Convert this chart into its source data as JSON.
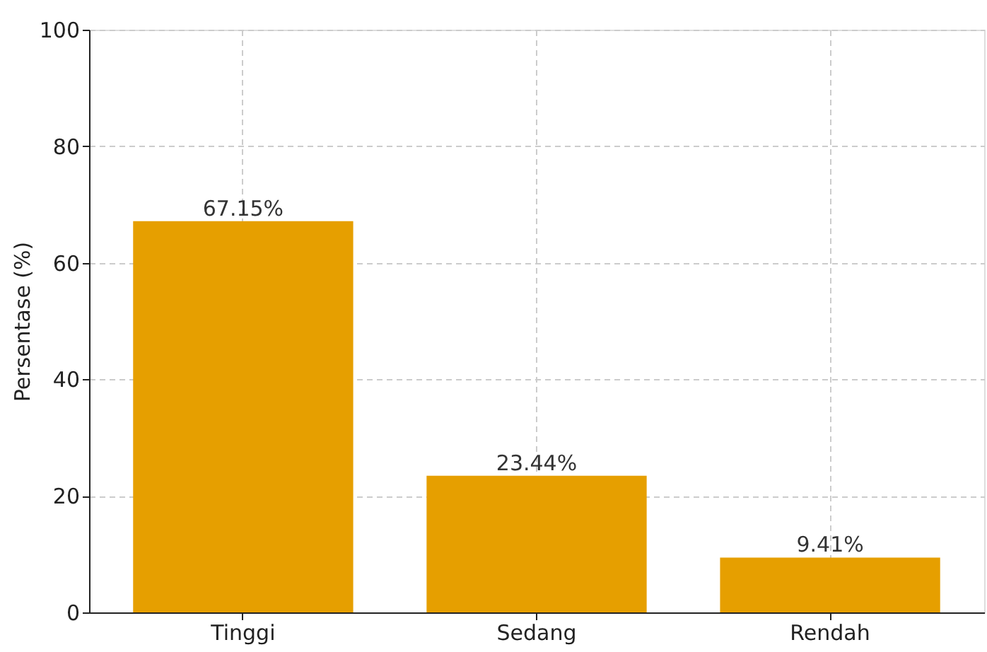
{
  "chart_data": {
    "type": "bar",
    "ylabel": "Persentase (%)",
    "categories": [
      "Tinggi",
      "Sedang",
      "Rendah"
    ],
    "values": [
      67.15,
      23.44,
      9.41
    ],
    "color": "#e69f00",
    "value_labels": [
      "67.15%",
      "23.44%",
      "9.41%"
    ],
    "ylim": [
      0,
      100
    ],
    "yticks": [
      0,
      20,
      40,
      60,
      80,
      100
    ],
    "grid": true
  }
}
